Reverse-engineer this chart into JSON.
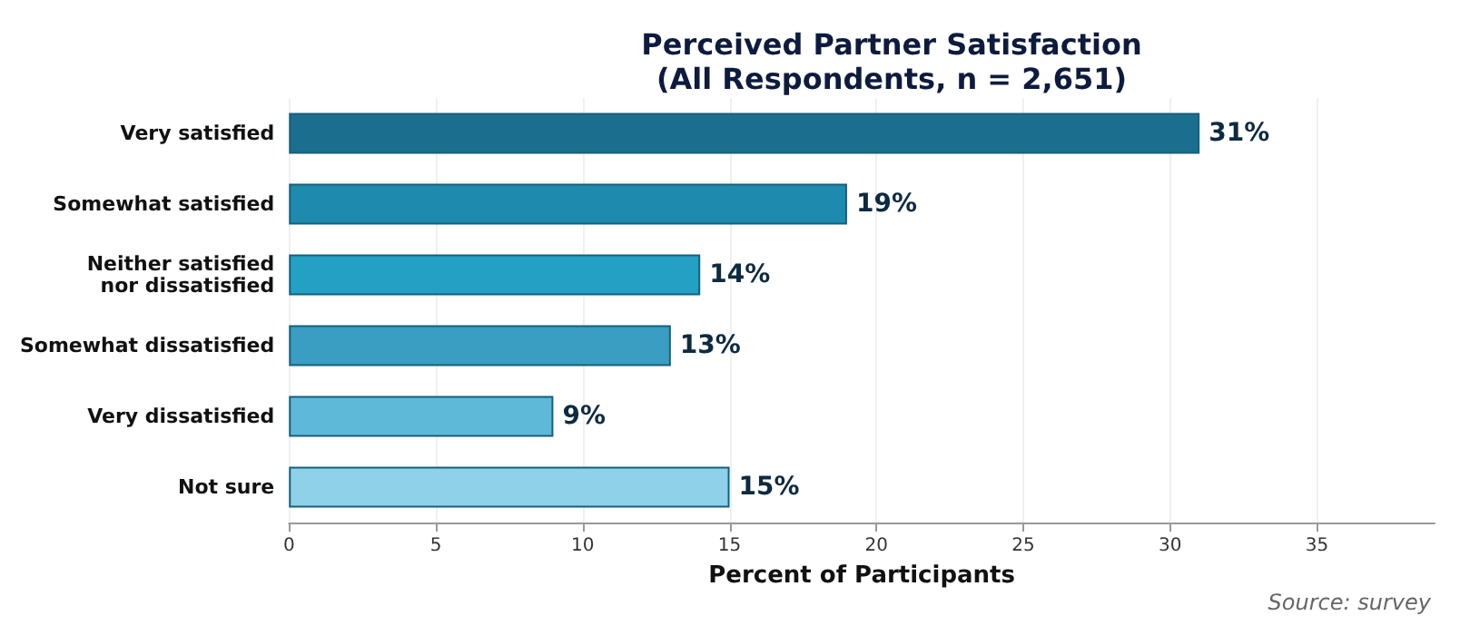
{
  "chart_data": {
    "type": "bar",
    "orientation": "horizontal",
    "title": "Perceived Partner Satisfaction\n(All Respondents, n = 2,651)",
    "xlabel": "Percent of Participants",
    "categories": [
      "Very satisfied",
      "Somewhat satisfied",
      "Neither satisfied nor dissatisfied",
      "Somewhat dissatisfied",
      "Very dissatisfied",
      "Not sure"
    ],
    "values": [
      31,
      19,
      14,
      13,
      9,
      15
    ],
    "colors": [
      "#1b6e8e",
      "#1e8aae",
      "#23a0c4",
      "#3a9dc2",
      "#5db9d7",
      "#8ed1e8"
    ],
    "value_labels": [
      "31%",
      "19%",
      "14%",
      "13%",
      "9%",
      "15%"
    ],
    "xlim": [
      0,
      39
    ],
    "xticks": [
      0,
      5,
      10,
      15,
      20,
      25,
      30,
      35
    ],
    "grid": "x",
    "annotations": [
      "Source: survey"
    ]
  }
}
